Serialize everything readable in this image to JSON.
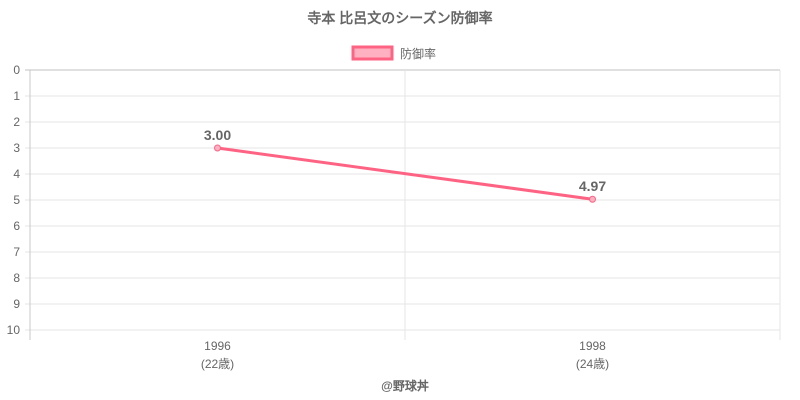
{
  "chart_data": {
    "type": "line",
    "title": "寺本 比呂文のシーズン防御率",
    "categories": [
      "1996",
      "1998"
    ],
    "category_sublabels": [
      "(22歳)",
      "(24歳)"
    ],
    "series": [
      {
        "name": "防御率",
        "values": [
          3.0,
          4.97
        ],
        "data_labels": [
          "3.00",
          "4.97"
        ]
      }
    ],
    "ylim": [
      0,
      10
    ],
    "y_reversed": true,
    "yticks": [
      "0",
      "1",
      "2",
      "3",
      "4",
      "5",
      "6",
      "7",
      "8",
      "9",
      "10"
    ],
    "grid": true,
    "legend": "top-center",
    "xlabel": "",
    "ylabel": ""
  },
  "credit": "@野球丼",
  "colors": {
    "line": "#ff6384",
    "fill": "#ffb1c1",
    "grid": "#e5e5e5",
    "text": "#666666"
  }
}
